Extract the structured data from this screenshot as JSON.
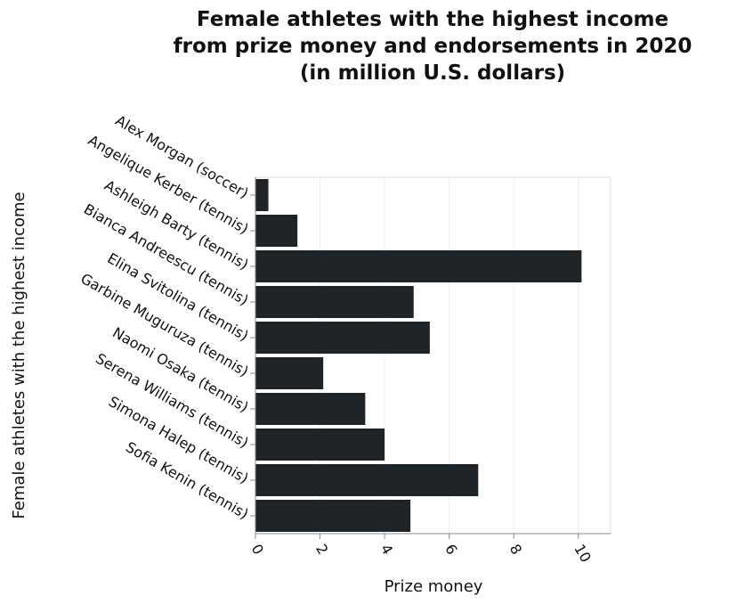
{
  "chart_data": {
    "type": "bar",
    "orientation": "horizontal",
    "title": [
      "Female athletes with the highest income",
      "from prize money and endorsements in 2020",
      "(in million U.S. dollars)"
    ],
    "xlabel": "Prize money",
    "ylabel": "Female athletes with the highest income",
    "categories": [
      "Alex Morgan (soccer)",
      "Angelique Kerber (tennis)",
      "Ashleigh Barty (tennis)",
      "Bianca Andreescu (tennis)",
      "Elina Svitolina (tennis)",
      "Garbine Muguruza (tennis)",
      "Naomi Osaka (tennis)",
      "Serena Williams (tennis)",
      "Simona Halep (tennis)",
      "Sofia Kenin (tennis)"
    ],
    "values": [
      0.4,
      1.3,
      10.1,
      4.9,
      5.4,
      2.1,
      3.4,
      4.0,
      6.9,
      4.8
    ],
    "xlim": [
      0,
      11
    ],
    "xticks": [
      0,
      2,
      4,
      6,
      8,
      10
    ],
    "xtick_labels": [
      "0",
      "2",
      "4",
      "6",
      "8",
      "10"
    ],
    "grid": true,
    "colors": {
      "bar": "#1f2429",
      "grid": "#eeeeee",
      "axis": "#888888"
    }
  }
}
